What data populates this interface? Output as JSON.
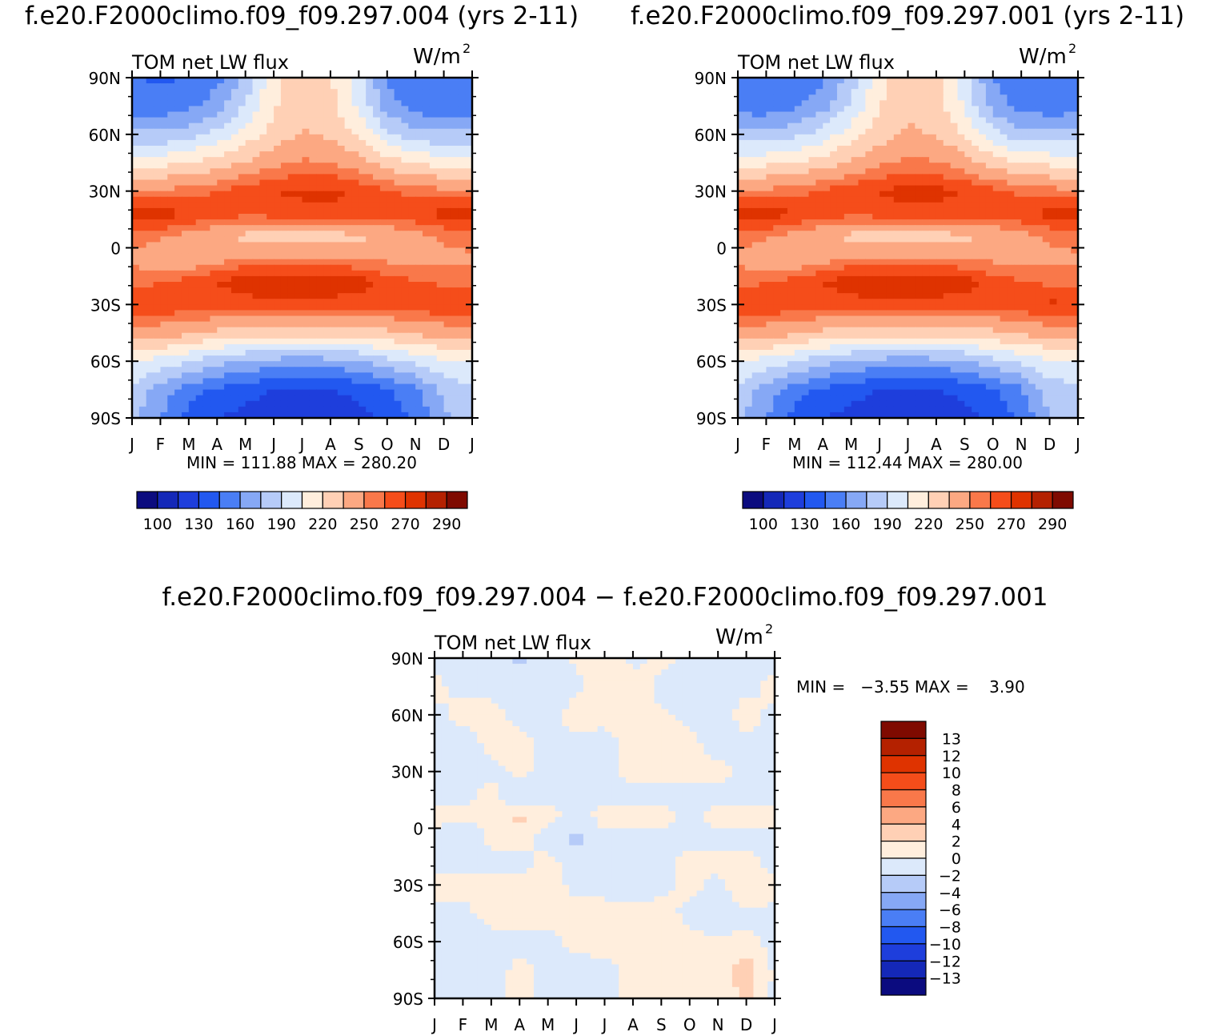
{
  "chart_data": [
    {
      "type": "heatmap",
      "title": "f.e20.F2000climo.f09_f09.297.004 (yrs 2-11)",
      "subtitle": "TOM net LW flux",
      "units": "W/m",
      "units_sup": "2",
      "x_tick_labels": [
        "J",
        "F",
        "M",
        "A",
        "M",
        "J",
        "J",
        "A",
        "S",
        "O",
        "N",
        "D",
        "J"
      ],
      "y_tick_labels": [
        "90N",
        "60N",
        "30N",
        "0",
        "30S",
        "60S",
        "90S"
      ],
      "y_ticks": [
        90,
        60,
        30,
        0,
        -30,
        -60,
        -90
      ],
      "ylim": [
        -90,
        90
      ],
      "xlim": [
        0,
        12
      ],
      "stats_label": "MIN = 111.88 MAX = 280.20",
      "min": 111.88,
      "max": 280.2,
      "colorbar_labels": [
        "100",
        "130",
        "160",
        "190",
        "220",
        "250",
        "270",
        "290"
      ],
      "colorbar_colors": [
        "#0b0b7f",
        "#1428b8",
        "#1e3edc",
        "#2258f0",
        "#4a7ef5",
        "#86a8f5",
        "#b6cbf8",
        "#dce9fb",
        "#ffeedd",
        "#ffd0b5",
        "#fca882",
        "#f9784a",
        "#f54d1a",
        "#df3300",
        "#b42100",
        "#7f0a00"
      ],
      "value_rows": [
        {
          "lat": 90,
          "v": [
            146,
            143,
            146,
            155,
            180,
            215,
            230,
            222,
            195,
            158,
            146,
            146,
            146
          ]
        },
        {
          "lat": 75,
          "v": [
            152,
            150,
            156,
            168,
            192,
            218,
            232,
            226,
            202,
            168,
            152,
            150,
            152
          ]
        },
        {
          "lat": 60,
          "v": [
            178,
            178,
            184,
            196,
            212,
            226,
            236,
            232,
            218,
            194,
            180,
            178,
            178
          ]
        },
        {
          "lat": 45,
          "v": [
            215,
            215,
            220,
            226,
            236,
            246,
            252,
            250,
            242,
            228,
            218,
            215,
            215
          ]
        },
        {
          "lat": 30,
          "v": [
            252,
            252,
            255,
            260,
            266,
            270,
            272,
            272,
            268,
            262,
            256,
            253,
            252
          ]
        },
        {
          "lat": 18,
          "v": [
            277,
            276,
            270,
            265,
            264,
            265,
            267,
            268,
            266,
            265,
            268,
            274,
            277
          ]
        },
        {
          "lat": 6,
          "v": [
            256,
            252,
            246,
            238,
            230,
            226,
            226,
            228,
            232,
            238,
            246,
            252,
            256
          ]
        },
        {
          "lat": -6,
          "v": [
            248,
            236,
            238,
            246,
            252,
            252,
            252,
            252,
            250,
            248,
            246,
            246,
            248
          ]
        },
        {
          "lat": -18,
          "v": [
            256,
            260,
            264,
            270,
            276,
            278,
            278,
            278,
            274,
            266,
            260,
            258,
            256
          ]
        },
        {
          "lat": -30,
          "v": [
            270,
            270,
            268,
            266,
            266,
            266,
            266,
            266,
            266,
            266,
            268,
            270,
            270
          ]
        },
        {
          "lat": -45,
          "v": [
            245,
            242,
            238,
            232,
            228,
            226,
            226,
            226,
            228,
            232,
            238,
            242,
            245
          ]
        },
        {
          "lat": -60,
          "v": [
            205,
            200,
            192,
            180,
            174,
            170,
            168,
            170,
            174,
            184,
            195,
            202,
            205
          ]
        },
        {
          "lat": -75,
          "v": [
            188,
            168,
            152,
            142,
            136,
            130,
            128,
            130,
            134,
            144,
            158,
            180,
            188
          ]
        },
        {
          "lat": -90,
          "v": [
            180,
            160,
            140,
            130,
            125,
            120,
            118,
            120,
            124,
            132,
            148,
            172,
            180
          ]
        }
      ]
    },
    {
      "type": "heatmap",
      "title": "f.e20.F2000climo.f09_f09.297.001 (yrs 2-11)",
      "subtitle": "TOM net LW flux",
      "units": "W/m",
      "units_sup": "2",
      "x_tick_labels": [
        "J",
        "F",
        "M",
        "A",
        "M",
        "J",
        "J",
        "A",
        "S",
        "O",
        "N",
        "D",
        "J"
      ],
      "y_tick_labels": [
        "90N",
        "60N",
        "30N",
        "0",
        "30S",
        "60S",
        "90S"
      ],
      "y_ticks": [
        90,
        60,
        30,
        0,
        -30,
        -60,
        -90
      ],
      "ylim": [
        -90,
        90
      ],
      "xlim": [
        0,
        12
      ],
      "stats_label": "MIN = 112.44 MAX = 280.00",
      "min": 112.44,
      "max": 280.0,
      "colorbar_labels": [
        "100",
        "130",
        "160",
        "190",
        "220",
        "250",
        "270",
        "290"
      ],
      "colorbar_colors": [
        "#0b0b7f",
        "#1428b8",
        "#1e3edc",
        "#2258f0",
        "#4a7ef5",
        "#86a8f5",
        "#b6cbf8",
        "#dce9fb",
        "#ffeedd",
        "#ffd0b5",
        "#fca882",
        "#f9784a",
        "#f54d1a",
        "#df3300",
        "#b42100",
        "#7f0a00"
      ],
      "value_rows": [
        {
          "lat": 90,
          "v": [
            147,
            145,
            148,
            156,
            181,
            216,
            231,
            223,
            196,
            160,
            147,
            146,
            147
          ]
        },
        {
          "lat": 75,
          "v": [
            153,
            151,
            157,
            169,
            193,
            219,
            233,
            227,
            203,
            169,
            153,
            151,
            153
          ]
        },
        {
          "lat": 60,
          "v": [
            179,
            179,
            185,
            197,
            213,
            227,
            237,
            233,
            219,
            195,
            181,
            179,
            179
          ]
        },
        {
          "lat": 45,
          "v": [
            216,
            216,
            221,
            227,
            237,
            247,
            253,
            251,
            243,
            229,
            219,
            216,
            216
          ]
        },
        {
          "lat": 30,
          "v": [
            253,
            253,
            256,
            261,
            267,
            271,
            273,
            273,
            269,
            263,
            257,
            254,
            253
          ]
        },
        {
          "lat": 18,
          "v": [
            277,
            276,
            270,
            265,
            264,
            265,
            267,
            268,
            266,
            265,
            268,
            274,
            277
          ]
        },
        {
          "lat": 6,
          "v": [
            255,
            252,
            246,
            238,
            230,
            226,
            226,
            228,
            232,
            238,
            246,
            252,
            255
          ]
        },
        {
          "lat": -6,
          "v": [
            248,
            240,
            240,
            246,
            252,
            252,
            252,
            252,
            250,
            248,
            246,
            246,
            248
          ]
        },
        {
          "lat": -18,
          "v": [
            256,
            260,
            264,
            270,
            276,
            278,
            278,
            278,
            274,
            266,
            260,
            258,
            256
          ]
        },
        {
          "lat": -30,
          "v": [
            270,
            270,
            268,
            266,
            266,
            266,
            266,
            266,
            266,
            266,
            268,
            272,
            270
          ]
        },
        {
          "lat": -45,
          "v": [
            245,
            242,
            238,
            232,
            228,
            226,
            226,
            226,
            228,
            232,
            238,
            242,
            245
          ]
        },
        {
          "lat": -60,
          "v": [
            205,
            200,
            192,
            180,
            174,
            170,
            168,
            170,
            174,
            184,
            195,
            202,
            205
          ]
        },
        {
          "lat": -75,
          "v": [
            188,
            168,
            152,
            142,
            136,
            130,
            128,
            130,
            134,
            144,
            158,
            182,
            188
          ]
        },
        {
          "lat": -90,
          "v": [
            180,
            160,
            140,
            130,
            125,
            120,
            118,
            120,
            124,
            132,
            150,
            174,
            180
          ]
        }
      ]
    },
    {
      "type": "heatmap",
      "title": "f.e20.F2000climo.f09_f09.297.004 − f.e20.F2000climo.f09_f09.297.001",
      "subtitle": "TOM net LW flux",
      "units": "W/m",
      "units_sup": "2",
      "x_tick_labels": [
        "J",
        "F",
        "M",
        "A",
        "M",
        "J",
        "J",
        "A",
        "S",
        "O",
        "N",
        "D",
        "J"
      ],
      "y_tick_labels": [
        "90N",
        "60N",
        "30N",
        "0",
        "30S",
        "60S",
        "90S"
      ],
      "y_ticks": [
        90,
        60,
        30,
        0,
        -30,
        -60,
        -90
      ],
      "ylim": [
        -90,
        90
      ],
      "xlim": [
        0,
        12
      ],
      "stats_label": "MIN =   −3.55 MAX =    3.90",
      "min": -3.55,
      "max": 3.9,
      "colorbar_labels": [
        "13",
        "12",
        "10",
        "8",
        "6",
        "4",
        "2",
        "0",
        "−2",
        "−4",
        "−6",
        "−8",
        "−10",
        "−12",
        "−13"
      ],
      "colorbar_colors": [
        "#7f0a00",
        "#b42100",
        "#df3300",
        "#f54d1a",
        "#f9784a",
        "#fca882",
        "#ffd0b5",
        "#ffeedd",
        "#dce9fb",
        "#b6cbf8",
        "#86a8f5",
        "#4a7ef5",
        "#2258f0",
        "#1e3edc",
        "#1428b8",
        "#0b0b7f"
      ],
      "value_rows": [
        {
          "lat": 90,
          "v": [
            -0.5,
            -0.8,
            -1.2,
            -2.4,
            -1.0,
            0.3,
            0.6,
            -0.4,
            0.5,
            -0.6,
            -1.0,
            -0.8,
            -0.5
          ]
        },
        {
          "lat": 75,
          "v": [
            0.4,
            -0.6,
            -0.4,
            -0.8,
            -1.0,
            -0.3,
            0.5,
            0.8,
            -0.5,
            -0.8,
            -0.6,
            -0.4,
            0.4
          ]
        },
        {
          "lat": 60,
          "v": [
            -0.4,
            0.6,
            0.5,
            -0.5,
            -0.6,
            0.7,
            0.5,
            0.4,
            0.3,
            -0.4,
            -0.5,
            0.6,
            -0.4
          ]
        },
        {
          "lat": 45,
          "v": [
            -0.6,
            -0.8,
            0.4,
            0.6,
            -0.5,
            -0.4,
            -0.6,
            0.5,
            0.6,
            0.4,
            -0.6,
            -0.4,
            -0.6
          ]
        },
        {
          "lat": 30,
          "v": [
            -2.2,
            -0.6,
            -0.5,
            0.5,
            -0.4,
            -0.6,
            -0.5,
            0.6,
            0.8,
            0.5,
            0.4,
            -0.5,
            -2.2
          ]
        },
        {
          "lat": 18,
          "v": [
            -0.5,
            -0.6,
            0.6,
            -2.3,
            -0.4,
            -0.5,
            -0.6,
            -0.4,
            -0.5,
            -0.6,
            -0.4,
            -0.5,
            -0.5
          ]
        },
        {
          "lat": 6,
          "v": [
            0.5,
            0.6,
            0.7,
            2.6,
            0.5,
            -0.6,
            0.6,
            0.7,
            0.6,
            -0.5,
            0.5,
            0.6,
            0.5
          ]
        },
        {
          "lat": -6,
          "v": [
            -0.4,
            -2.1,
            0.6,
            0.5,
            -0.6,
            -2.5,
            -0.5,
            -0.4,
            -0.6,
            -0.5,
            -0.6,
            -0.4,
            -0.4
          ]
        },
        {
          "lat": -18,
          "v": [
            -0.6,
            -0.4,
            -0.5,
            -0.5,
            0.5,
            -0.5,
            -0.6,
            -0.5,
            -0.4,
            0.5,
            0.6,
            0.5,
            -0.6
          ]
        },
        {
          "lat": -30,
          "v": [
            0.5,
            0.6,
            0.7,
            0.6,
            0.5,
            -0.4,
            -0.5,
            -0.6,
            -0.5,
            0.6,
            -0.5,
            2.4,
            0.5
          ]
        },
        {
          "lat": -45,
          "v": [
            -0.5,
            -0.4,
            0.5,
            0.6,
            0.7,
            0.6,
            0.5,
            0.4,
            0.6,
            -0.4,
            -2.2,
            -0.5,
            -0.5
          ]
        },
        {
          "lat": -60,
          "v": [
            -0.6,
            -0.5,
            -0.4,
            -0.6,
            -0.5,
            0.5,
            0.6,
            0.5,
            0.4,
            0.5,
            0.6,
            0.5,
            -0.6
          ]
        },
        {
          "lat": -75,
          "v": [
            -0.4,
            -0.5,
            -0.6,
            0.4,
            -0.5,
            -0.6,
            -0.5,
            0.5,
            0.6,
            0.6,
            0.5,
            3.2,
            -0.4
          ]
        },
        {
          "lat": -90,
          "v": [
            -0.5,
            -0.4,
            -0.5,
            0.5,
            -0.4,
            -0.5,
            -0.6,
            0.5,
            0.6,
            0.5,
            0.6,
            2.6,
            -0.5
          ]
        }
      ]
    }
  ]
}
